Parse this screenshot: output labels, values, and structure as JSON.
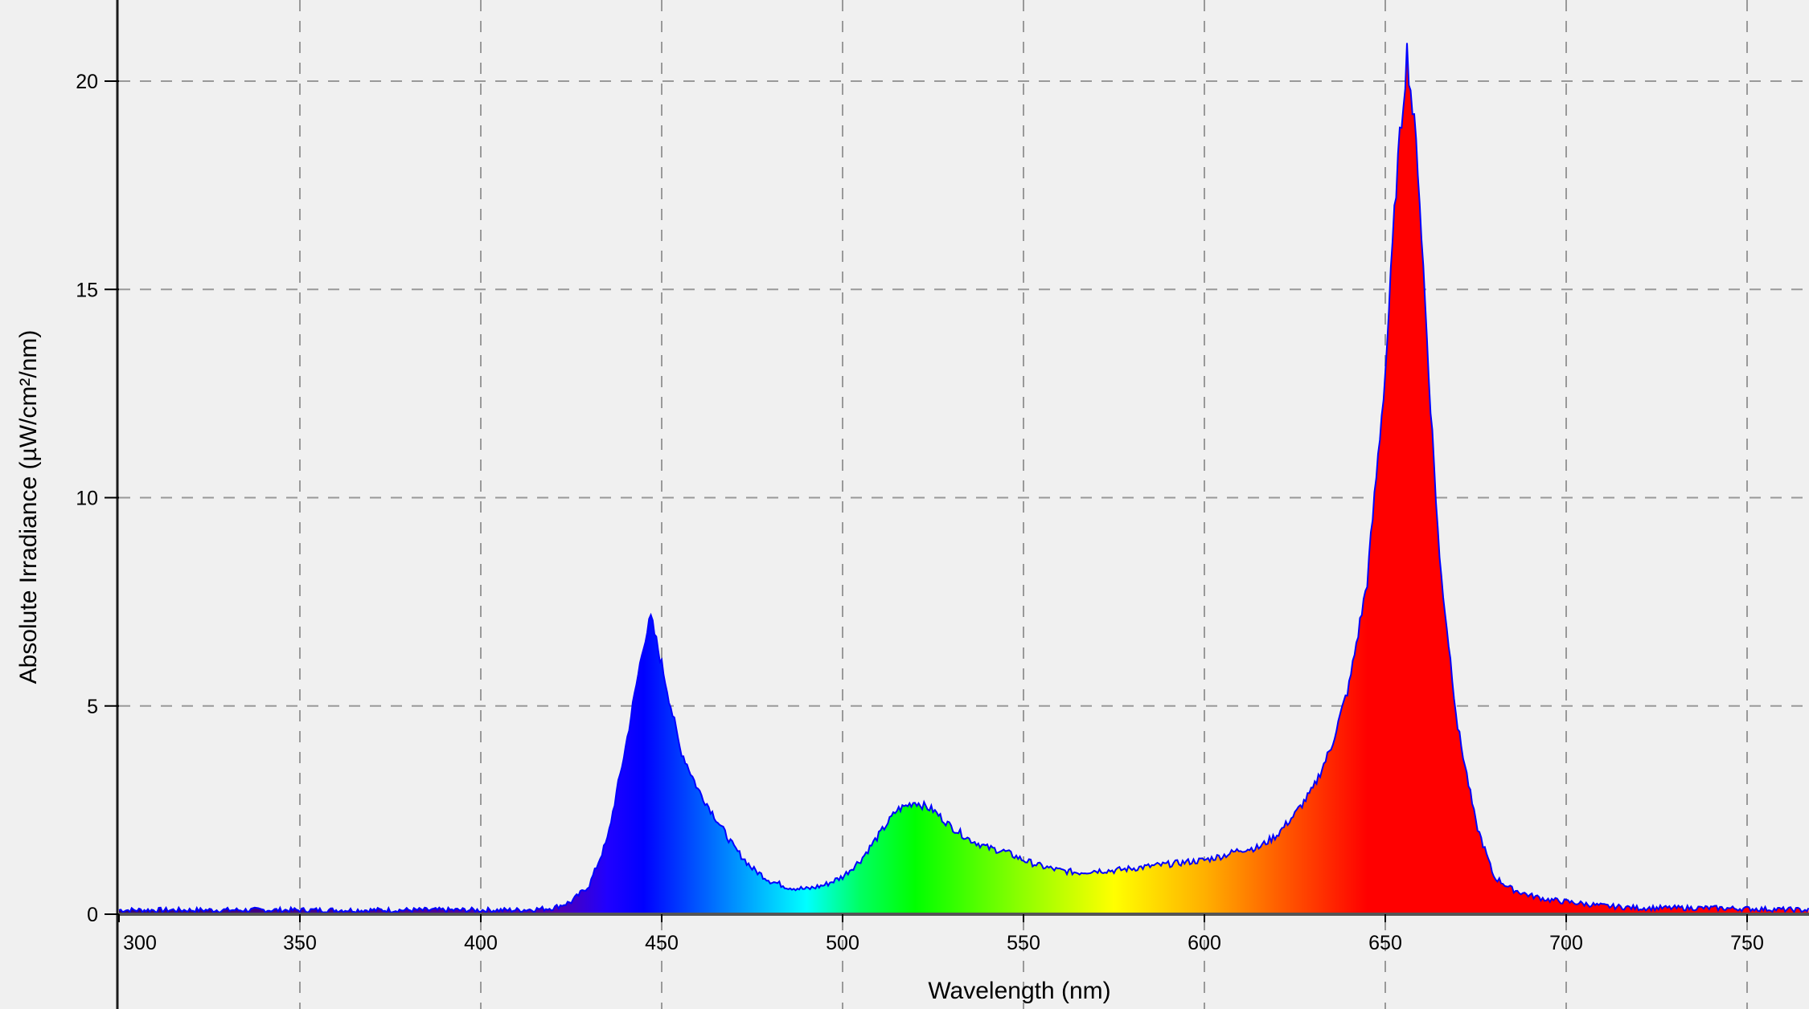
{
  "chart_data": {
    "type": "area",
    "title": "",
    "xlabel": "Wavelength (nm)",
    "ylabel": "Absolute Irradiance (µW/cm²/nm)",
    "xlim": [
      300,
      767
    ],
    "ylim": [
      0,
      21.5
    ],
    "x_ticks": [
      300,
      350,
      400,
      450,
      500,
      550,
      600,
      650,
      700,
      750
    ],
    "y_ticks": [
      0,
      5,
      10,
      15,
      20
    ],
    "grid": true,
    "fill": "spectral-gradient",
    "line_color": "#0000ff",
    "background": "#f0f0f0",
    "series": [
      {
        "x": [
          300,
          320,
          340,
          360,
          380,
          400,
          410,
          415,
          420,
          425,
          430,
          435,
          440,
          445,
          447,
          450,
          455,
          460,
          465,
          470,
          475,
          480,
          485,
          490,
          495,
          500,
          505,
          510,
          515,
          520,
          525,
          530,
          535,
          540,
          545,
          550,
          555,
          560,
          565,
          570,
          575,
          580,
          585,
          590,
          595,
          600,
          605,
          610,
          615,
          620,
          625,
          630,
          635,
          640,
          645,
          650,
          653,
          656,
          659,
          662,
          665,
          670,
          675,
          680,
          685,
          690,
          695,
          700,
          710,
          720,
          740,
          767
        ],
        "y": [
          0.1,
          0.1,
          0.1,
          0.1,
          0.1,
          0.1,
          0.1,
          0.12,
          0.15,
          0.3,
          0.7,
          1.8,
          4.0,
          6.5,
          7.1,
          6.0,
          4.0,
          3.0,
          2.3,
          1.6,
          1.1,
          0.8,
          0.65,
          0.6,
          0.7,
          0.9,
          1.3,
          1.9,
          2.5,
          2.7,
          2.5,
          2.1,
          1.8,
          1.6,
          1.5,
          1.3,
          1.15,
          1.05,
          1.0,
          1.05,
          1.05,
          1.1,
          1.15,
          1.2,
          1.25,
          1.3,
          1.4,
          1.55,
          1.6,
          1.9,
          2.4,
          3.0,
          4.0,
          5.5,
          8.0,
          13.0,
          17.5,
          20.7,
          18.0,
          13.0,
          8.5,
          4.5,
          2.2,
          0.9,
          0.6,
          0.45,
          0.35,
          0.3,
          0.2,
          0.15,
          0.15,
          0.1
        ]
      }
    ]
  }
}
